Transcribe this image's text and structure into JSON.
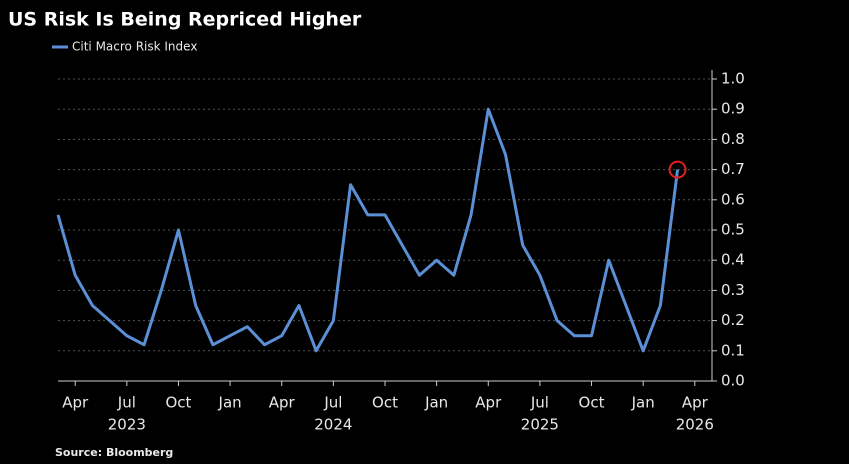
{
  "chart_data": {
    "type": "line",
    "title": "US Risk Is Being Repriced Higher",
    "source": "Source: Bloomberg",
    "x": [
      "2023-03",
      "2023-04",
      "2023-05",
      "2023-06",
      "2023-07",
      "2023-08",
      "2023-09",
      "2023-10",
      "2023-11",
      "2023-12",
      "2024-01",
      "2024-02",
      "2024-03",
      "2024-04",
      "2024-05",
      "2024-06",
      "2024-07",
      "2024-08",
      "2024-09",
      "2024-10",
      "2024-11",
      "2024-12",
      "2025-01",
      "2025-02",
      "2025-03",
      "2025-04",
      "2025-05",
      "2025-06",
      "2025-07",
      "2025-08",
      "2025-09",
      "2025-10",
      "2025-11",
      "2025-12",
      "2026-01",
      "2026-02",
      "2026-03"
    ],
    "series": [
      {
        "name": "Citi Macro Risk Index",
        "color": "#5b8fd6",
        "values": [
          0.55,
          0.35,
          0.25,
          0.2,
          0.15,
          0.12,
          0.3,
          0.5,
          0.25,
          0.12,
          0.15,
          0.18,
          0.12,
          0.15,
          0.25,
          0.1,
          0.2,
          0.65,
          0.55,
          0.55,
          0.45,
          0.35,
          0.4,
          0.35,
          0.55,
          0.9,
          0.75,
          0.45,
          0.35,
          0.2,
          0.15,
          0.15,
          0.4,
          0.25,
          0.1,
          0.25,
          0.7
        ]
      }
    ],
    "xlim": [
      "2023-03",
      "2026-05"
    ],
    "xticks": [
      {
        "value": "2023-04",
        "label": "Apr"
      },
      {
        "value": "2023-07",
        "label": "Jul"
      },
      {
        "value": "2023-10",
        "label": "Oct"
      },
      {
        "value": "2024-01",
        "label": "Jan"
      },
      {
        "value": "2024-04",
        "label": "Apr"
      },
      {
        "value": "2024-07",
        "label": "Jul"
      },
      {
        "value": "2024-10",
        "label": "Oct"
      },
      {
        "value": "2025-01",
        "label": "Jan"
      },
      {
        "value": "2025-04",
        "label": "Apr"
      },
      {
        "value": "2025-07",
        "label": "Jul"
      },
      {
        "value": "2025-10",
        "label": "Oct"
      },
      {
        "value": "2026-01",
        "label": "Jan"
      },
      {
        "value": "2026-04",
        "label": "Apr"
      }
    ],
    "xyears": [
      {
        "value": "2023-07",
        "label": "2023"
      },
      {
        "value": "2024-07",
        "label": "2024"
      },
      {
        "value": "2025-07",
        "label": "2025"
      },
      {
        "value": "2026-04",
        "label": "2026"
      }
    ],
    "ylim": [
      0,
      1
    ],
    "yticks": [
      {
        "value": 0,
        "label": "0.0"
      },
      0.1,
      0.2,
      0.3,
      0.4,
      0.5,
      0.6,
      0.7,
      0.8,
      0.9,
      {
        "value": 1,
        "label": "1.0"
      }
    ],
    "grid": true
  }
}
